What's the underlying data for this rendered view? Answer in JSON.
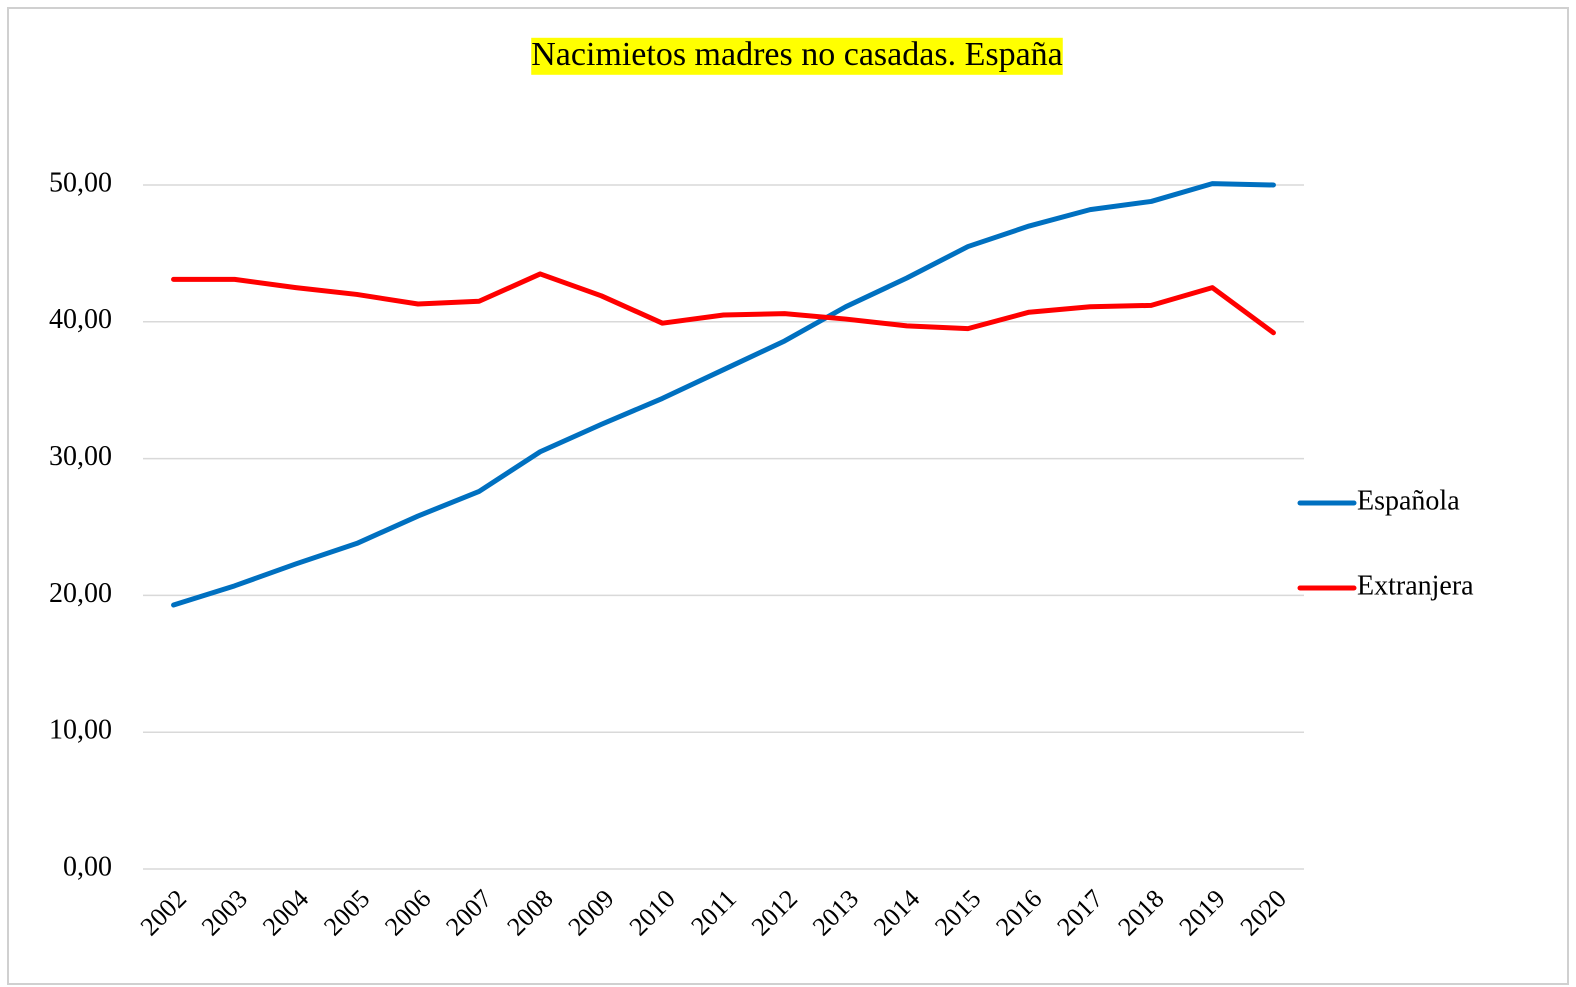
{
  "chart_data": {
    "type": "line",
    "title": "Nacimietos madres no casadas. España",
    "categories": [
      "2002",
      "2003",
      "2004",
      "2005",
      "2006",
      "2007",
      "2008",
      "2009",
      "2010",
      "2011",
      "2012",
      "2013",
      "2014",
      "2015",
      "2016",
      "2017",
      "2018",
      "2019",
      "2020"
    ],
    "series": [
      {
        "name": "Española",
        "color": "#0070c0",
        "values": [
          19.3,
          20.7,
          22.3,
          23.8,
          25.8,
          27.6,
          30.5,
          32.5,
          34.4,
          36.5,
          38.6,
          41.1,
          43.2,
          45.5,
          47.0,
          48.2,
          48.8,
          50.1,
          50.0
        ]
      },
      {
        "name": "Extranjera",
        "color": "#ff0000",
        "values": [
          43.1,
          43.1,
          42.5,
          42.0,
          41.3,
          41.5,
          43.5,
          41.9,
          39.9,
          40.5,
          40.6,
          40.2,
          39.7,
          39.5,
          40.7,
          41.1,
          41.2,
          42.5,
          39.2
        ]
      }
    ],
    "ylim": [
      0,
      50
    ],
    "yticks": [
      {
        "value": 0,
        "label": "0,00"
      },
      {
        "value": 10,
        "label": "10,00"
      },
      {
        "value": 20,
        "label": "20,00"
      },
      {
        "value": 30,
        "label": "30,00"
      },
      {
        "value": 40,
        "label": "40,00"
      },
      {
        "value": 50,
        "label": "50,00"
      }
    ],
    "grid": true,
    "legend": "right",
    "title_highlight": "#ffff00"
  }
}
